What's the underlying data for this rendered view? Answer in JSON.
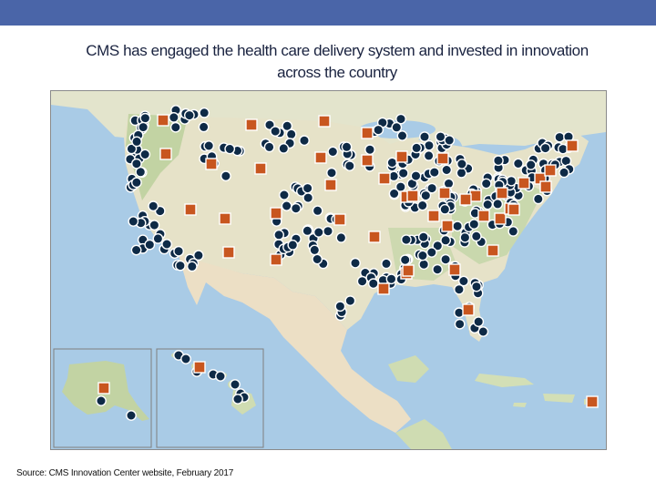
{
  "slide": {
    "title_line1": "CMS has engaged the health care delivery system and invested in innovation",
    "title_line2": "across the country",
    "source": "Source: CMS Innovation Center website, February 2017"
  },
  "map": {
    "icons": {
      "circle_marker": "circle-marker-icon",
      "square_marker": "square-marker-icon"
    },
    "colors": {
      "water": "#a9cbe6",
      "land": "#e6e2c8",
      "forest": "#c2d3a3",
      "mexico": "#ecdfc5",
      "circle_marker": "#0e2a46",
      "square_marker": "#c8561f",
      "top_bar": "#4a65a8"
    }
  }
}
